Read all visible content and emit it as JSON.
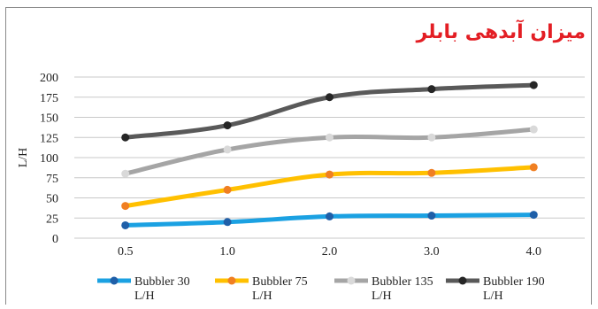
{
  "chart_data": {
    "type": "line",
    "title": "میزان آبدهی بابلر",
    "xlabel": "",
    "ylabel": "L/H",
    "categories": [
      "0.5",
      "1.0",
      "2.0",
      "3.0",
      "4.0"
    ],
    "ylim": [
      0,
      200
    ],
    "yticks": [
      "0",
      "25",
      "50",
      "75",
      "100",
      "125",
      "150",
      "175",
      "200"
    ],
    "grid": true,
    "legend_position": "bottom",
    "series": [
      {
        "name": "Bubbler 30",
        "name_line1": "Bubbler 30",
        "name_line2": "L/H",
        "color": "#1ba1e2",
        "values": [
          16,
          20,
          27,
          28,
          29
        ]
      },
      {
        "name": "Bubbler 75",
        "name_line1": "Bubbler 75",
        "name_line2": "L/H",
        "color": "#ffc000",
        "values": [
          40,
          60,
          79,
          81,
          88
        ]
      },
      {
        "name": "Bubbler 135",
        "name_line1": "Bubbler 135",
        "name_line2": "L/H",
        "color": "#a5a5a5",
        "values": [
          80,
          110,
          125,
          125,
          135
        ]
      },
      {
        "name": "Bubbler 190",
        "name_line1": "Bubbler 190",
        "name_line2": "L/H",
        "color": "#595959",
        "values": [
          125,
          140,
          175,
          185,
          190
        ]
      }
    ],
    "marker_colors": [
      "#1f5fa8",
      "#f07f22",
      "#d9d9d9",
      "#262626"
    ]
  }
}
